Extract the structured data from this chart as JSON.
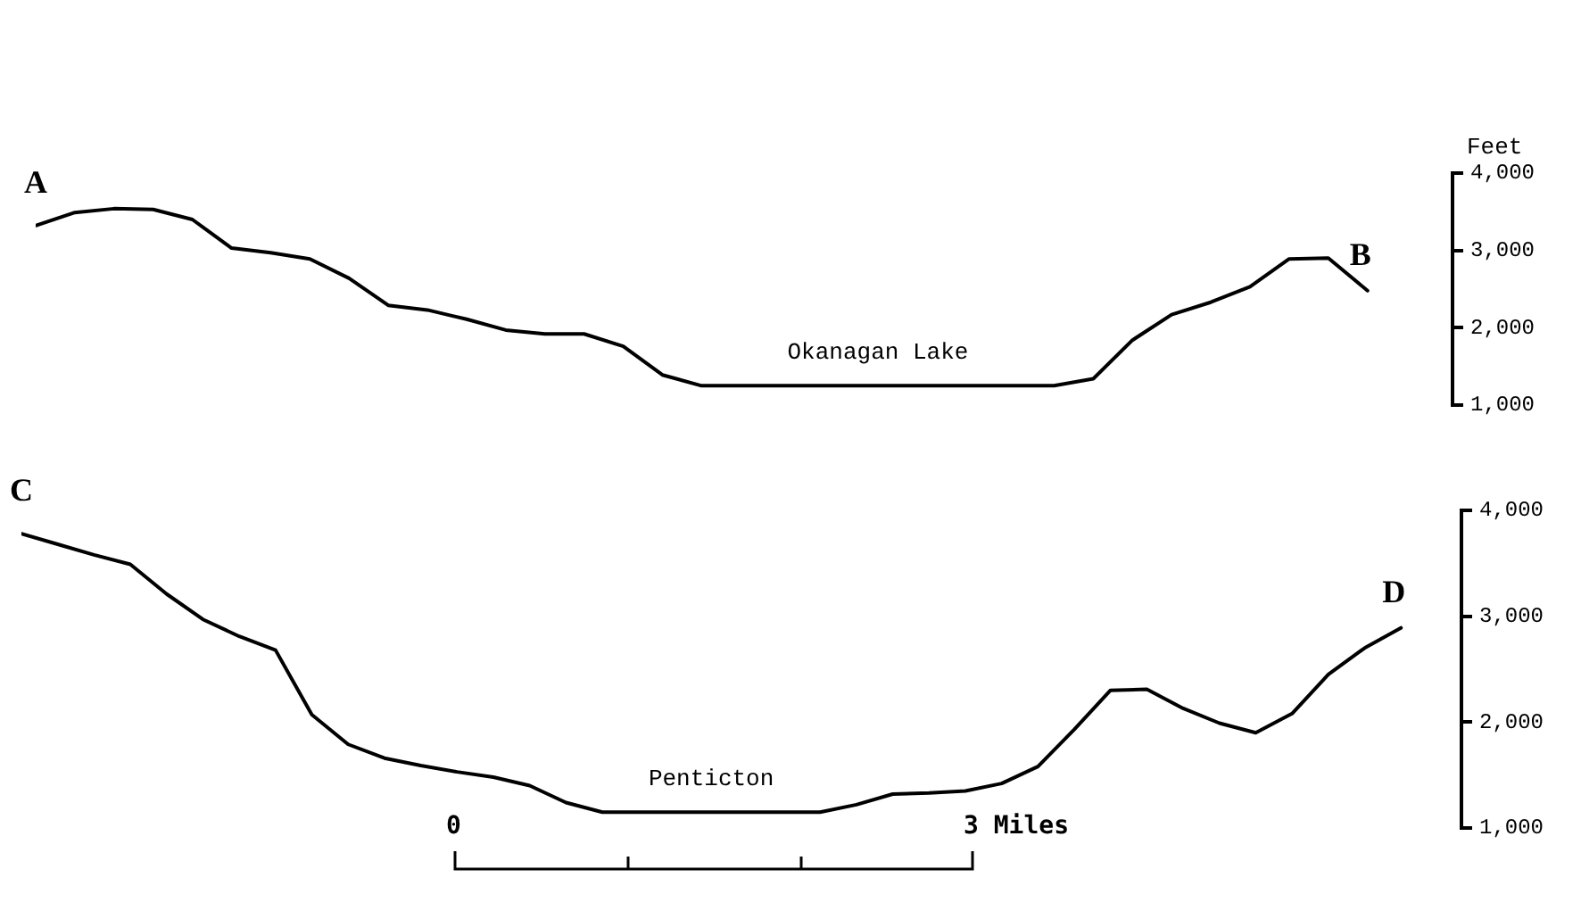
{
  "chart_data": [
    {
      "type": "line",
      "ylabel": "Feet",
      "categories": [
        null,
        null,
        null,
        null,
        null,
        null,
        null,
        null,
        null,
        null,
        null,
        null,
        null,
        null,
        null,
        null,
        null,
        null,
        null,
        null,
        null,
        null,
        null,
        null,
        null,
        null,
        null,
        null,
        null,
        null,
        null,
        null,
        null,
        null,
        null
      ],
      "series": [
        {
          "color": "#000000",
          "values": [
            3320,
            3490,
            3540,
            3530,
            3400,
            3030,
            2970,
            2890,
            2640,
            2290,
            2230,
            2110,
            1970,
            1920,
            1920,
            1760,
            1390,
            1250,
            1250,
            1250,
            1250,
            1250,
            1250,
            1250,
            1250,
            1250,
            1250,
            1340,
            1840,
            2170,
            2330,
            2530,
            2890,
            2900,
            2480
          ]
        }
      ],
      "ylim": [
        1000,
        4000
      ],
      "yticks": [
        {
          "value": 1000,
          "label": "1,000"
        },
        {
          "value": 2000,
          "label": "2,000"
        },
        {
          "value": 3000,
          "label": "3,000"
        },
        {
          "value": 4000,
          "label": "4,000"
        }
      ],
      "annotations": [
        "A",
        "B",
        "Okanagan Lake"
      ],
      "tick_labels": "y",
      "grid": false,
      "legend": false,
      "marker": "none",
      "line_style": "solid"
    },
    {
      "type": "line",
      "categories": [
        null,
        null,
        null,
        null,
        null,
        null,
        null,
        null,
        null,
        null,
        null,
        null,
        null,
        null,
        null,
        null,
        null,
        null,
        null,
        null,
        null,
        null,
        null,
        null,
        null,
        null,
        null,
        null,
        null,
        null,
        null,
        null,
        null,
        null,
        null,
        null,
        null,
        null,
        null
      ],
      "series": [
        {
          "color": "#000000",
          "values": [
            3780,
            3680,
            3580,
            3490,
            3210,
            2970,
            2810,
            2680,
            2070,
            1790,
            1660,
            1590,
            1530,
            1480,
            1400,
            1240,
            1150,
            1150,
            1150,
            1150,
            1150,
            1150,
            1150,
            1220,
            1320,
            1330,
            1350,
            1420,
            1580,
            1930,
            2300,
            2310,
            2130,
            1990,
            1900,
            2080,
            2450,
            2700,
            2890
          ]
        }
      ],
      "ylim": [
        1000,
        4000
      ],
      "yticks": [
        {
          "value": 1000,
          "label": "1,000"
        },
        {
          "value": 2000,
          "label": "2,000"
        },
        {
          "value": 3000,
          "label": "3,000"
        },
        {
          "value": 4000,
          "label": "4,000"
        }
      ],
      "annotations": [
        "C",
        "D",
        "Penticton",
        "0",
        "3 Miles"
      ],
      "tick_labels": "y",
      "grid": false,
      "legend": false,
      "marker": "none",
      "line_style": "solid"
    }
  ]
}
